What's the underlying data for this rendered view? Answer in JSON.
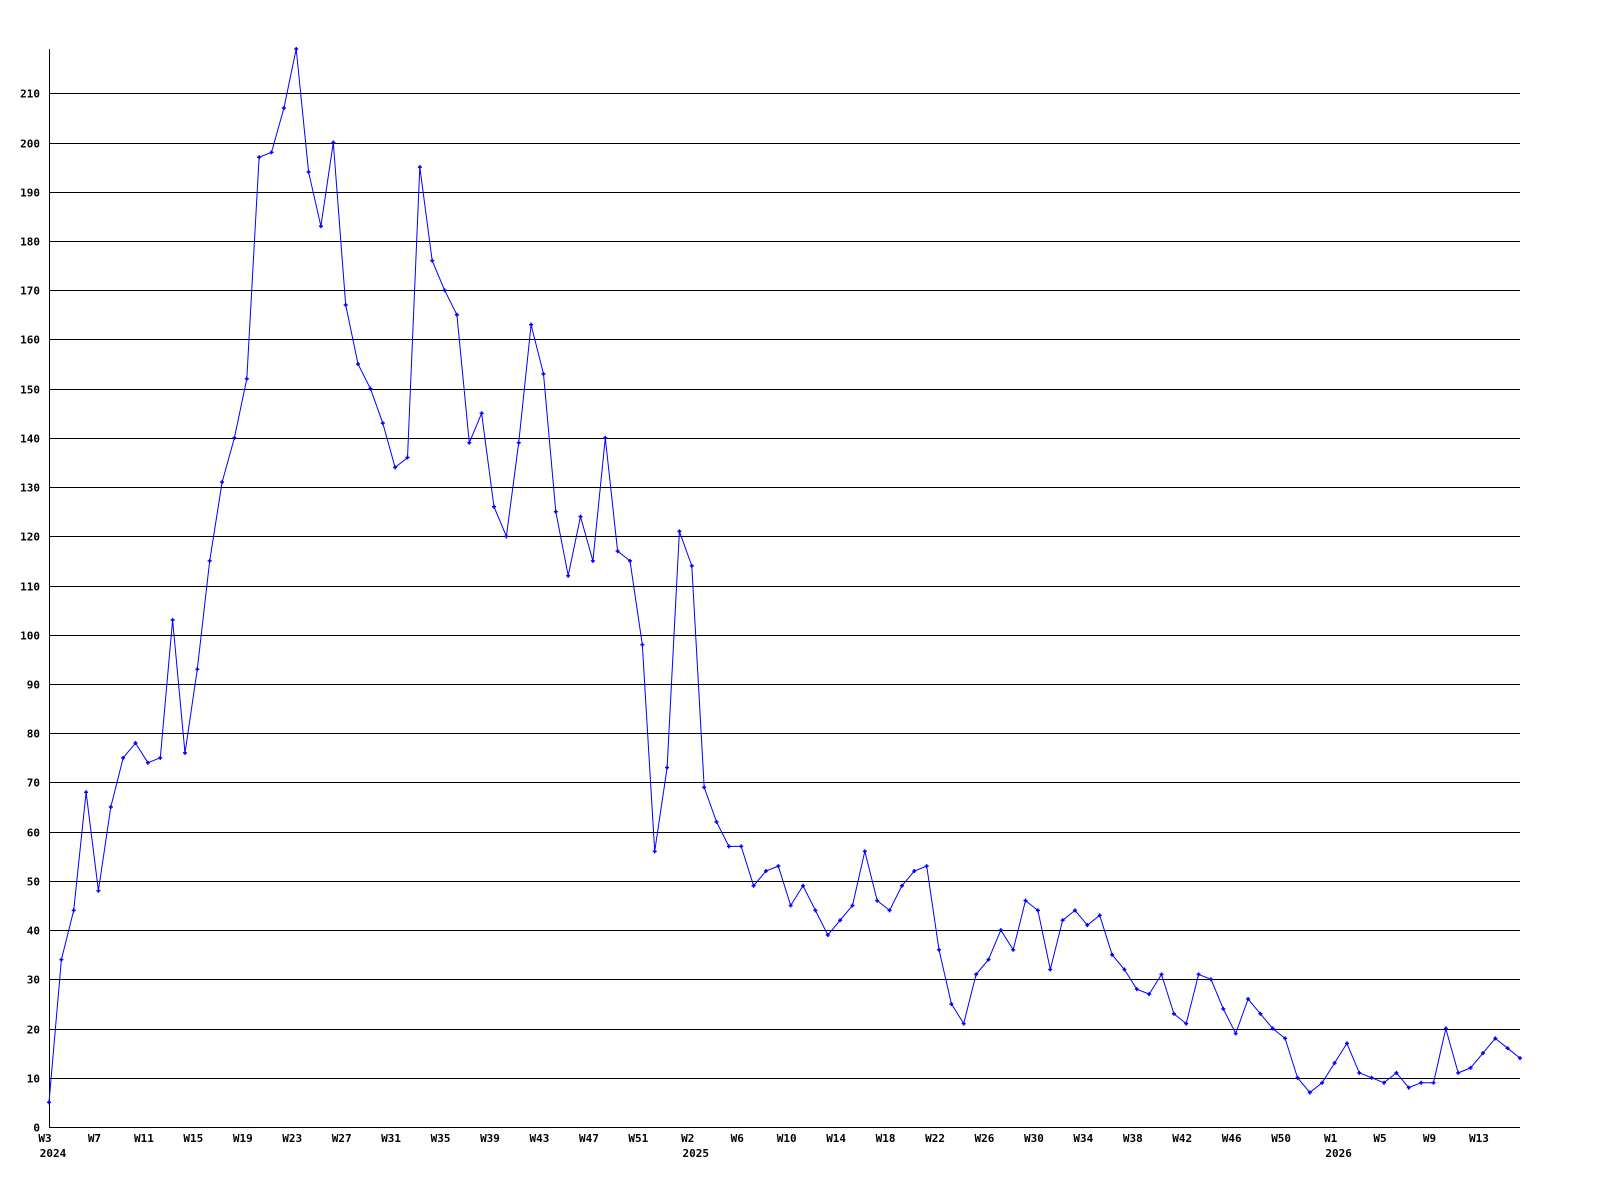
{
  "chart_data": {
    "type": "line",
    "title": "",
    "xlabel": "",
    "ylabel": "",
    "ylim": [
      0,
      219
    ],
    "grid": true,
    "y_ticks": [
      0,
      10,
      20,
      30,
      40,
      50,
      60,
      70,
      80,
      90,
      100,
      110,
      120,
      130,
      140,
      150,
      160,
      170,
      180,
      190,
      200,
      210
    ],
    "x_tick_labels": [
      {
        "index": 0,
        "label": "W3",
        "year": "2024"
      },
      {
        "index": 4,
        "label": "W7"
      },
      {
        "index": 8,
        "label": "W11"
      },
      {
        "index": 12,
        "label": "W15"
      },
      {
        "index": 16,
        "label": "W19"
      },
      {
        "index": 20,
        "label": "W23"
      },
      {
        "index": 24,
        "label": "W27"
      },
      {
        "index": 28,
        "label": "W31"
      },
      {
        "index": 32,
        "label": "W35"
      },
      {
        "index": 36,
        "label": "W39"
      },
      {
        "index": 40,
        "label": "W43"
      },
      {
        "index": 44,
        "label": "W47"
      },
      {
        "index": 48,
        "label": "W51"
      },
      {
        "index": 52,
        "label": "W2",
        "year": "2025"
      },
      {
        "index": 56,
        "label": "W6"
      },
      {
        "index": 60,
        "label": "W10"
      },
      {
        "index": 64,
        "label": "W14"
      },
      {
        "index": 68,
        "label": "W18"
      },
      {
        "index": 72,
        "label": "W22"
      },
      {
        "index": 76,
        "label": "W26"
      },
      {
        "index": 80,
        "label": "W30"
      },
      {
        "index": 84,
        "label": "W34"
      },
      {
        "index": 88,
        "label": "W38"
      },
      {
        "index": 92,
        "label": "W42"
      },
      {
        "index": 96,
        "label": "W46"
      },
      {
        "index": 100,
        "label": "W50"
      },
      {
        "index": 104,
        "label": "W1",
        "year": "2026"
      },
      {
        "index": 108,
        "label": "W5"
      },
      {
        "index": 112,
        "label": "W9"
      },
      {
        "index": 116,
        "label": "W13"
      }
    ],
    "series": [
      {
        "color": "#0000ff",
        "values": [
          5,
          34,
          44,
          68,
          48,
          65,
          75,
          78,
          74,
          75,
          103,
          76,
          93,
          115,
          131,
          140,
          152,
          197,
          198,
          207,
          219,
          194,
          183,
          200,
          167,
          155,
          150,
          143,
          134,
          136,
          195,
          176,
          170,
          165,
          139,
          145,
          126,
          120,
          139,
          163,
          153,
          125,
          112,
          124,
          115,
          140,
          117,
          115,
          98,
          56,
          73,
          121,
          114,
          69,
          62,
          57,
          57,
          49,
          52,
          53,
          45,
          49,
          44,
          39,
          42,
          45,
          56,
          46,
          44,
          49,
          52,
          53,
          36,
          25,
          21,
          31,
          34,
          40,
          36,
          46,
          44,
          32,
          42,
          44,
          41,
          43,
          35,
          32,
          28,
          27,
          31,
          23,
          21,
          31,
          30,
          24,
          19,
          26,
          23,
          20,
          18,
          10,
          7,
          9,
          13,
          17,
          11,
          10,
          9,
          11,
          8,
          9,
          9,
          20,
          11,
          12,
          15,
          18,
          16,
          14
        ]
      }
    ]
  }
}
